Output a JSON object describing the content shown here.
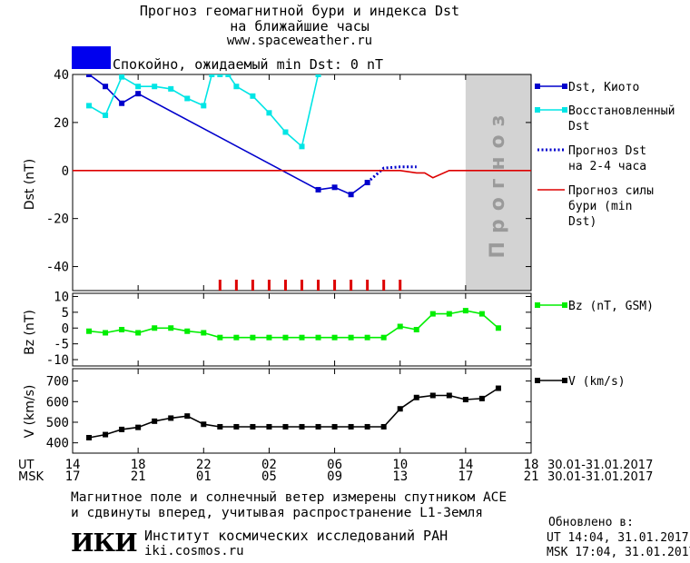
{
  "header": {
    "title_line1": "Прогноз геомагнитной бури и индекса Dst",
    "title_line2": "на ближайшие часы",
    "url": "www.spaceweather.ru",
    "status_text": "Спокойно, ожидаемый min Dst: 0 nT",
    "status_color": "#0000ee"
  },
  "chart_data": [
    {
      "type": "line",
      "ylabel": "Dst (nT)",
      "ylim": [
        -50,
        40
      ],
      "yticks": [
        40,
        20,
        0,
        -20,
        -40
      ],
      "xlim": [
        14,
        42
      ],
      "shaded_region": {
        "x": [
          38,
          42
        ],
        "label": "Прогноз",
        "color": "#d3d3d3"
      },
      "series": [
        {
          "name": "Dst, Киото",
          "color": "#0000cc",
          "marker": "square",
          "points": [
            [
              15,
              40
            ],
            [
              16,
              35
            ],
            [
              17,
              28
            ],
            [
              18,
              32
            ],
            [
              29,
              -8
            ],
            [
              30,
              -7
            ],
            [
              31,
              -10
            ],
            [
              32,
              -5
            ]
          ]
        },
        {
          "name": "Восстановленный Dst",
          "color": "#00e5e5",
          "marker": "square",
          "points": [
            [
              15,
              27
            ],
            [
              16,
              23
            ],
            [
              17,
              39
            ],
            [
              18,
              35
            ],
            [
              19,
              35
            ],
            [
              20,
              34
            ],
            [
              21,
              30
            ],
            [
              22,
              27
            ],
            [
              22.5,
              40
            ],
            [
              23,
              40
            ],
            [
              23.5,
              40
            ],
            [
              24,
              35
            ],
            [
              25,
              31
            ],
            [
              26,
              24
            ],
            [
              27,
              16
            ],
            [
              28,
              10
            ],
            [
              29,
              40
            ]
          ]
        },
        {
          "name": "Прогноз Dst на 2-4 часа",
          "color": "#0000cc",
          "style": "dotted",
          "points": [
            [
              32,
              -5
            ],
            [
              33,
              1
            ],
            [
              34,
              1.5
            ],
            [
              35,
              1.5
            ]
          ]
        },
        {
          "name": "Прогноз силы бури (min Dst)",
          "color": "#dd0000",
          "points": [
            [
              14,
              0
            ],
            [
              34,
              0
            ],
            [
              35,
              -1
            ],
            [
              35.5,
              -1
            ],
            [
              36,
              -3
            ],
            [
              37,
              0
            ],
            [
              38,
              0
            ],
            [
              42,
              0
            ]
          ]
        }
      ],
      "storm_ticks_x": [
        23,
        24,
        25,
        26,
        27,
        28,
        29,
        30,
        31,
        32,
        33,
        34
      ]
    },
    {
      "type": "line",
      "ylabel": "Bz (nT)",
      "ylim": [
        -12,
        11
      ],
      "yticks": [
        10,
        5,
        0,
        -5,
        -10
      ],
      "xlim": [
        14,
        42
      ],
      "series": [
        {
          "name": "Bz (nT, GSM)",
          "color": "#00ee00",
          "marker": "square",
          "points": [
            [
              15,
              -1
            ],
            [
              16,
              -1.5
            ],
            [
              17,
              -0.5
            ],
            [
              18,
              -1.5
            ],
            [
              19,
              0
            ],
            [
              20,
              0
            ],
            [
              21,
              -1
            ],
            [
              22,
              -1.5
            ],
            [
              23,
              -3
            ],
            [
              24,
              -3
            ],
            [
              25,
              -3
            ],
            [
              26,
              -3
            ],
            [
              27,
              -3
            ],
            [
              28,
              -3
            ],
            [
              29,
              -3
            ],
            [
              30,
              -3
            ],
            [
              31,
              -3
            ],
            [
              32,
              -3
            ],
            [
              33,
              -3
            ],
            [
              34,
              0.5
            ],
            [
              35,
              -0.5
            ],
            [
              36,
              4.5
            ],
            [
              37,
              4.5
            ],
            [
              38,
              5.5
            ],
            [
              39,
              4.5
            ],
            [
              40,
              0
            ]
          ]
        }
      ]
    },
    {
      "type": "line",
      "ylabel": "V (km/s)",
      "ylim": [
        350,
        760
      ],
      "yticks": [
        700,
        600,
        500,
        400
      ],
      "xlim": [
        14,
        42
      ],
      "series": [
        {
          "name": "V (km/s)",
          "color": "#000000",
          "marker": "square",
          "points": [
            [
              15,
              425
            ],
            [
              16,
              440
            ],
            [
              17,
              465
            ],
            [
              18,
              475
            ],
            [
              19,
              505
            ],
            [
              20,
              520
            ],
            [
              21,
              530
            ],
            [
              22,
              490
            ],
            [
              23,
              478
            ],
            [
              24,
              478
            ],
            [
              25,
              478
            ],
            [
              26,
              478
            ],
            [
              27,
              478
            ],
            [
              28,
              478
            ],
            [
              29,
              478
            ],
            [
              30,
              478
            ],
            [
              31,
              478
            ],
            [
              32,
              478
            ],
            [
              33,
              478
            ],
            [
              34,
              565
            ],
            [
              35,
              620
            ],
            [
              36,
              630
            ],
            [
              37,
              630
            ],
            [
              38,
              610
            ],
            [
              39,
              615
            ],
            [
              40,
              665
            ]
          ]
        }
      ]
    }
  ],
  "xaxis": {
    "ut_label": "UT",
    "msk_label": "MSK",
    "ut_ticks": [
      "14",
      "18",
      "22",
      "02",
      "06",
      "10",
      "14",
      "18"
    ],
    "msk_ticks": [
      "17",
      "21",
      "01",
      "05",
      "09",
      "13",
      "17",
      "21"
    ],
    "ut_date_range": "30.01-31.01.2017",
    "msk_date_range": "30.01-31.01.2017"
  },
  "footer": {
    "note_line1": "Магнитное поле и солнечный ветер измерены спутником ACE",
    "note_line2": "и сдвинуты вперед, учитывая распространение L1-Земля",
    "logo_text": "ИКИ",
    "institute": "Институт космических исследований РАН",
    "institute_url": "iki.cosmos.ru",
    "updated_label": "Обновлено в:",
    "updated_ut": "UT  14:04, 31.01.2017",
    "updated_msk": "MSK 17:04, 31.01.2017"
  }
}
